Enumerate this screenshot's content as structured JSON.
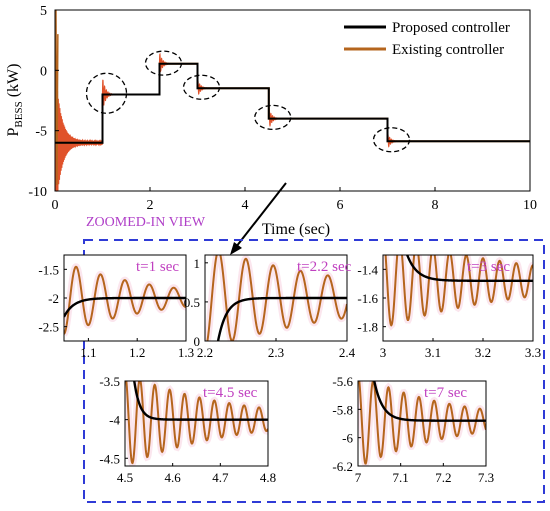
{
  "colors": {
    "proposed": "#000000",
    "existing": "#b5651d",
    "existing_fill": "#e0522a",
    "zoom_box": "#2f3bd6",
    "inset_label": "#c040c0",
    "inset_bg": "#fbe6ee"
  },
  "zoom_title": "ZOOMED-IN VIEW",
  "chart_data": [
    {
      "type": "line",
      "xlabel": "Time (sec)",
      "ylabel_main": "P",
      "ylabel_sub": "BESS",
      "ylabel_unit": "(kW)",
      "xlim": [
        0,
        10
      ],
      "ylim": [
        -10,
        5
      ],
      "xticks": [
        0,
        2,
        4,
        6,
        8,
        10
      ],
      "yticks": [
        5,
        0,
        -5,
        -10
      ],
      "legend_position": "top-right",
      "series": [
        {
          "name": "Proposed controller",
          "x": [
            0,
            0.05,
            1.0,
            1.0,
            2.2,
            2.2,
            3.0,
            3.0,
            4.5,
            4.5,
            7.0,
            7.0,
            10.0
          ],
          "y": [
            -6,
            -6,
            -6,
            -2,
            -2,
            0.55,
            0.55,
            -1.48,
            -1.48,
            -4.0,
            -4.0,
            -5.88,
            -5.88
          ]
        },
        {
          "name": "Existing controller",
          "x": [
            0,
            0.05,
            1.0,
            1.0,
            2.2,
            2.2,
            3.0,
            3.0,
            4.5,
            4.5,
            7.0,
            7.0,
            10.0
          ],
          "y": [
            -6,
            -6,
            -6,
            -2,
            -2,
            0.55,
            0.55,
            -1.48,
            -1.48,
            -4.0,
            -4.0,
            -5.88,
            -5.88
          ]
        }
      ],
      "step_times": [
        1.0,
        2.2,
        3.0,
        4.5,
        7.0
      ]
    },
    {
      "type": "line",
      "label": "t=1 sec",
      "xlim": [
        1.05,
        1.3
      ],
      "ylim": [
        -2.75,
        -1.25
      ],
      "xticks": [
        "1.1",
        "1.2",
        "1.3"
      ],
      "yticks": [
        "-1.5",
        "-2",
        "-2.5"
      ],
      "step_time": 1.0,
      "final_value": -2.0,
      "start_value": -6.0
    },
    {
      "type": "line",
      "label": "t=2.2 sec",
      "xlim": [
        2.2,
        2.4
      ],
      "ylim": [
        0,
        1.1
      ],
      "xticks": [
        "2.2",
        "2.3",
        "2.4"
      ],
      "yticks": [
        "1",
        "0.5",
        "0"
      ],
      "step_time": 2.2,
      "final_value": 0.55,
      "start_value": -2.0
    },
    {
      "type": "line",
      "label": "t=3 sec",
      "xlim": [
        3.0,
        3.3
      ],
      "ylim": [
        -1.9,
        -1.3
      ],
      "xticks": [
        "3",
        "3.1",
        "3.2",
        "3.3"
      ],
      "yticks": [
        "-1.4",
        "-1.6",
        "-1.8"
      ],
      "step_time": 3.0,
      "final_value": -1.48,
      "start_value": 0.55
    },
    {
      "type": "line",
      "label": "t=4.5 sec",
      "xlim": [
        4.5,
        4.8
      ],
      "ylim": [
        -4.6,
        -3.5
      ],
      "xticks": [
        "4.5",
        "4.6",
        "4.7",
        "4.8"
      ],
      "yticks": [
        "-3.5",
        "-4",
        "-4.5"
      ],
      "step_time": 4.5,
      "final_value": -4.0,
      "start_value": -1.48
    },
    {
      "type": "line",
      "label": "t=7 sec",
      "xlim": [
        7.0,
        7.3
      ],
      "ylim": [
        -6.2,
        -5.6
      ],
      "xticks": [
        "7",
        "7.1",
        "7.2",
        "7.3"
      ],
      "yticks": [
        "-5.6",
        "-5.8",
        "-6",
        "-6.2"
      ],
      "step_time": 7.0,
      "final_value": -5.88,
      "start_value": -4.0
    }
  ]
}
